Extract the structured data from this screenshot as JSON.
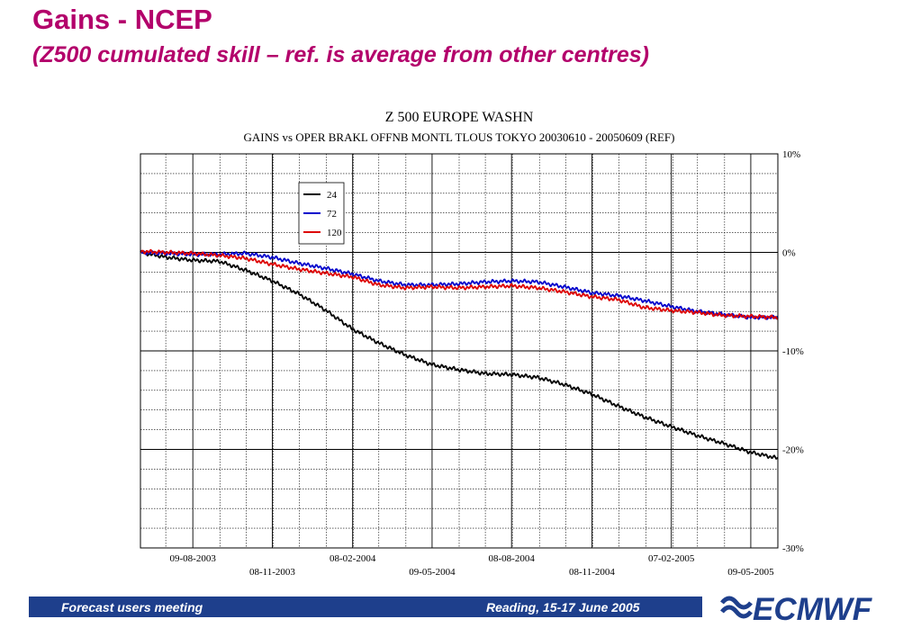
{
  "slide": {
    "title": "Gains - NCEP",
    "subtitle": "(Z500 cumulated skill – ref. is average from other centres)"
  },
  "footer": {
    "left_text": "Forecast users meeting",
    "right_text": "Reading, 15-17 June 2005",
    "logo_text": "ECMWF",
    "bar_color": "#1e3f8c"
  },
  "chart_data": {
    "type": "line",
    "title": "Z 500 EUROPE WASHN",
    "subtitle": "GAINS vs OPER BRAKL OFFNB MONTL TLOUS TOKYO 20030610 - 20050609 (REF)",
    "xlabel": "",
    "ylabel": "",
    "xlim": [
      "2003-06-10",
      "2005-06-09"
    ],
    "ylim": [
      -30,
      10
    ],
    "y_unit": "%",
    "yticks": [
      10,
      0,
      -10,
      -20,
      -30
    ],
    "ytick_labels": [
      "10%",
      "0%",
      "-10%",
      "-20%",
      "-30%"
    ],
    "xticks": [
      "2003-08-09",
      "2003-11-08",
      "2004-02-08",
      "2004-05-09",
      "2004-08-08",
      "2004-11-08",
      "2005-02-07",
      "2005-05-09"
    ],
    "xtick_labels": [
      "09-08-2003",
      "08-11-2003",
      "08-02-2004",
      "09-05-2004",
      "08-08-2004",
      "08-11-2004",
      "07-02-2005",
      "09-05-2005"
    ],
    "grid": true,
    "legend_position": "top-left",
    "series": [
      {
        "name": "24",
        "color": "#000000",
        "x": [
          "2003-06-10",
          "2003-07-10",
          "2003-08-09",
          "2003-09-08",
          "2003-10-08",
          "2003-11-08",
          "2003-12-08",
          "2004-01-07",
          "2004-02-08",
          "2004-03-09",
          "2004-04-08",
          "2004-05-09",
          "2004-06-08",
          "2004-07-08",
          "2004-08-08",
          "2004-09-07",
          "2004-10-07",
          "2004-11-08",
          "2004-12-08",
          "2005-01-07",
          "2005-02-07",
          "2005-03-09",
          "2005-04-08",
          "2005-05-09",
          "2005-06-09"
        ],
        "values": [
          0,
          -0.5,
          -0.8,
          -0.9,
          -1.8,
          -2.9,
          -4.2,
          -5.8,
          -7.8,
          -9.2,
          -10.4,
          -11.4,
          -11.9,
          -12.3,
          -12.4,
          -12.7,
          -13.4,
          -14.4,
          -15.6,
          -16.7,
          -17.7,
          -18.6,
          -19.4,
          -20.3,
          -20.9
        ]
      },
      {
        "name": "72",
        "color": "#0000cc",
        "x": [
          "2003-06-10",
          "2003-07-10",
          "2003-08-09",
          "2003-09-08",
          "2003-10-08",
          "2003-11-08",
          "2003-12-08",
          "2004-01-07",
          "2004-02-08",
          "2004-03-09",
          "2004-04-08",
          "2004-05-09",
          "2004-06-08",
          "2004-07-08",
          "2004-08-08",
          "2004-09-07",
          "2004-10-07",
          "2004-11-08",
          "2004-12-08",
          "2005-01-07",
          "2005-02-07",
          "2005-03-09",
          "2005-04-08",
          "2005-05-09",
          "2005-06-09"
        ],
        "values": [
          0,
          -0.1,
          -0.2,
          -0.2,
          -0.1,
          -0.5,
          -1.1,
          -1.6,
          -2.2,
          -2.9,
          -3.3,
          -3.3,
          -3.2,
          -3.0,
          -2.9,
          -3.0,
          -3.5,
          -4.1,
          -4.4,
          -4.9,
          -5.5,
          -6.0,
          -6.3,
          -6.6,
          -6.6
        ]
      },
      {
        "name": "120",
        "color": "#dd0000",
        "x": [
          "2003-06-10",
          "2003-07-10",
          "2003-08-09",
          "2003-09-08",
          "2003-10-08",
          "2003-11-08",
          "2003-12-08",
          "2004-01-07",
          "2004-02-08",
          "2004-03-09",
          "2004-04-08",
          "2004-05-09",
          "2004-06-08",
          "2004-07-08",
          "2004-08-08",
          "2004-09-07",
          "2004-10-07",
          "2004-11-08",
          "2004-12-08",
          "2005-01-07",
          "2005-02-07",
          "2005-03-09",
          "2005-04-08",
          "2005-05-09",
          "2005-06-09"
        ],
        "values": [
          0.1,
          0.0,
          -0.1,
          -0.3,
          -0.6,
          -1.2,
          -1.7,
          -2.1,
          -2.5,
          -3.3,
          -3.6,
          -3.5,
          -3.6,
          -3.5,
          -3.4,
          -3.6,
          -4.0,
          -4.5,
          -4.8,
          -5.6,
          -5.9,
          -6.1,
          -6.4,
          -6.5,
          -6.6
        ]
      }
    ]
  }
}
